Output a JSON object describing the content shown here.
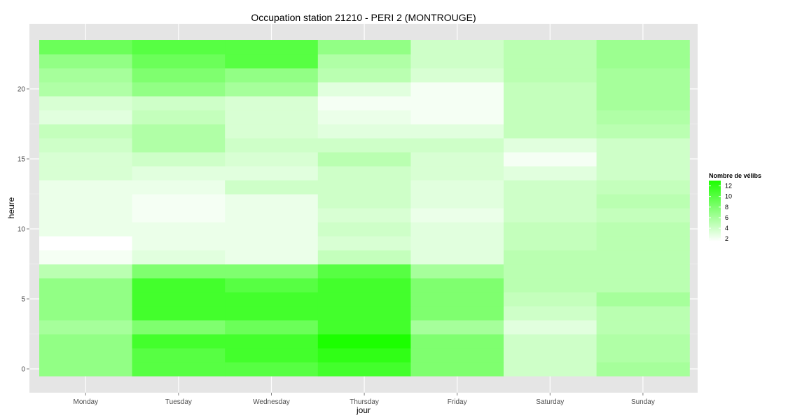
{
  "chart_data": {
    "type": "heatmap",
    "title": "Occupation station 21210 - PERI 2 (MONTROUGE)",
    "xlabel": "jour",
    "ylabel": "heure",
    "x_categories": [
      "Monday",
      "Tuesday",
      "Wednesday",
      "Thursday",
      "Friday",
      "Saturday",
      "Sunday"
    ],
    "y_categories": [
      0,
      1,
      2,
      3,
      4,
      5,
      6,
      7,
      8,
      9,
      10,
      11,
      12,
      13,
      14,
      15,
      16,
      17,
      18,
      19,
      20,
      21,
      22,
      23
    ],
    "y_ticks": [
      0,
      5,
      10,
      15,
      20
    ],
    "ylim": [
      -0.5,
      23.5
    ],
    "values": [
      [
        7,
        10,
        10,
        11,
        8,
        4,
        6
      ],
      [
        7,
        10,
        11,
        12,
        8,
        4,
        5.5
      ],
      [
        7,
        11,
        11,
        13,
        8,
        4,
        5.5
      ],
      [
        6,
        8,
        9,
        11,
        6,
        3,
        5
      ],
      [
        7,
        11,
        11,
        11,
        8,
        4,
        5
      ],
      [
        7,
        11,
        11,
        11,
        8,
        4.5,
        6
      ],
      [
        7,
        11,
        10,
        11,
        8,
        5,
        5
      ],
      [
        5,
        8,
        8,
        10,
        6,
        5,
        5
      ],
      [
        2,
        3,
        2.5,
        4.5,
        3,
        5,
        5
      ],
      [
        1.5,
        2.5,
        2.5,
        3.5,
        3,
        4.5,
        5
      ],
      [
        2.5,
        2.5,
        2.5,
        4,
        3,
        4.5,
        5
      ],
      [
        2.5,
        2,
        2.5,
        3.5,
        2.5,
        4,
        4.5
      ],
      [
        2.5,
        2,
        2.5,
        4,
        3,
        4,
        5
      ],
      [
        2.5,
        2.5,
        4,
        4,
        3,
        4,
        4.5
      ],
      [
        3.5,
        3,
        3,
        4,
        3.5,
        3,
        4
      ],
      [
        3.5,
        4,
        3.5,
        5,
        3.5,
        2,
        4
      ],
      [
        4,
        5.5,
        4,
        4,
        4,
        3,
        4
      ],
      [
        4.5,
        5.5,
        3.5,
        3,
        3,
        4.5,
        5
      ],
      [
        3,
        4.5,
        3.5,
        2.5,
        2,
        4.5,
        5.5
      ],
      [
        3.5,
        4,
        3.5,
        2,
        2,
        4.5,
        6
      ],
      [
        5.5,
        7,
        6,
        3,
        2,
        4.5,
        6
      ],
      [
        6,
        8,
        7,
        5,
        3.5,
        5,
        6
      ],
      [
        7,
        9,
        10,
        5.5,
        4,
        5,
        6.5
      ],
      [
        9,
        10,
        10,
        7,
        4,
        5,
        6.5
      ]
    ],
    "legend": {
      "title": "Nombre de vélibs",
      "ticks": [
        2,
        4,
        6,
        8,
        10,
        12
      ],
      "min": 1.5,
      "max": 13,
      "low_color": "#ffffff",
      "high_color": "#1cff00"
    },
    "grid": true
  }
}
